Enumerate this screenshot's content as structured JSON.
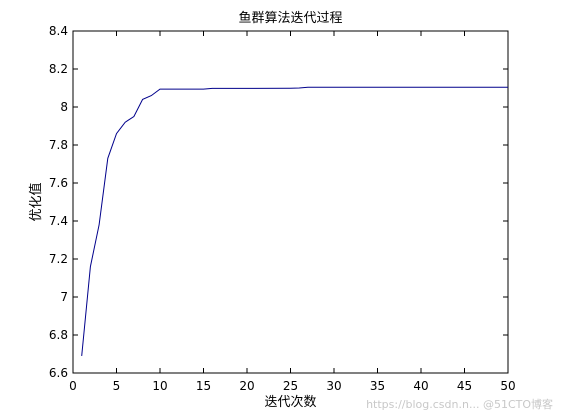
{
  "chart_data": {
    "type": "line",
    "title": "鱼群算法迭代过程",
    "xlabel": "迭代次数",
    "ylabel": "优化值",
    "xlim": [
      0,
      50
    ],
    "ylim": [
      6.6,
      8.4
    ],
    "xticks": [
      0,
      5,
      10,
      15,
      20,
      25,
      30,
      35,
      40,
      45,
      50
    ],
    "yticks": [
      6.6,
      6.8,
      7,
      7.2,
      7.4,
      7.6,
      7.8,
      8,
      8.2,
      8.4
    ],
    "grid": false,
    "line_color": "#00008b",
    "series": [
      {
        "x": [
          1,
          2,
          3,
          4,
          5,
          6,
          7,
          8,
          9,
          10,
          15,
          16,
          20,
          25,
          26,
          27,
          30,
          35,
          40,
          45,
          50
        ],
        "values": [
          6.69,
          7.16,
          7.38,
          7.73,
          7.86,
          7.92,
          7.95,
          8.04,
          8.06,
          8.094,
          8.094,
          8.098,
          8.098,
          8.099,
          8.1,
          8.104,
          8.104,
          8.104,
          8.104,
          8.104,
          8.104
        ]
      }
    ]
  },
  "watermark": "https://blog.csdn.n... @51CTO博客"
}
